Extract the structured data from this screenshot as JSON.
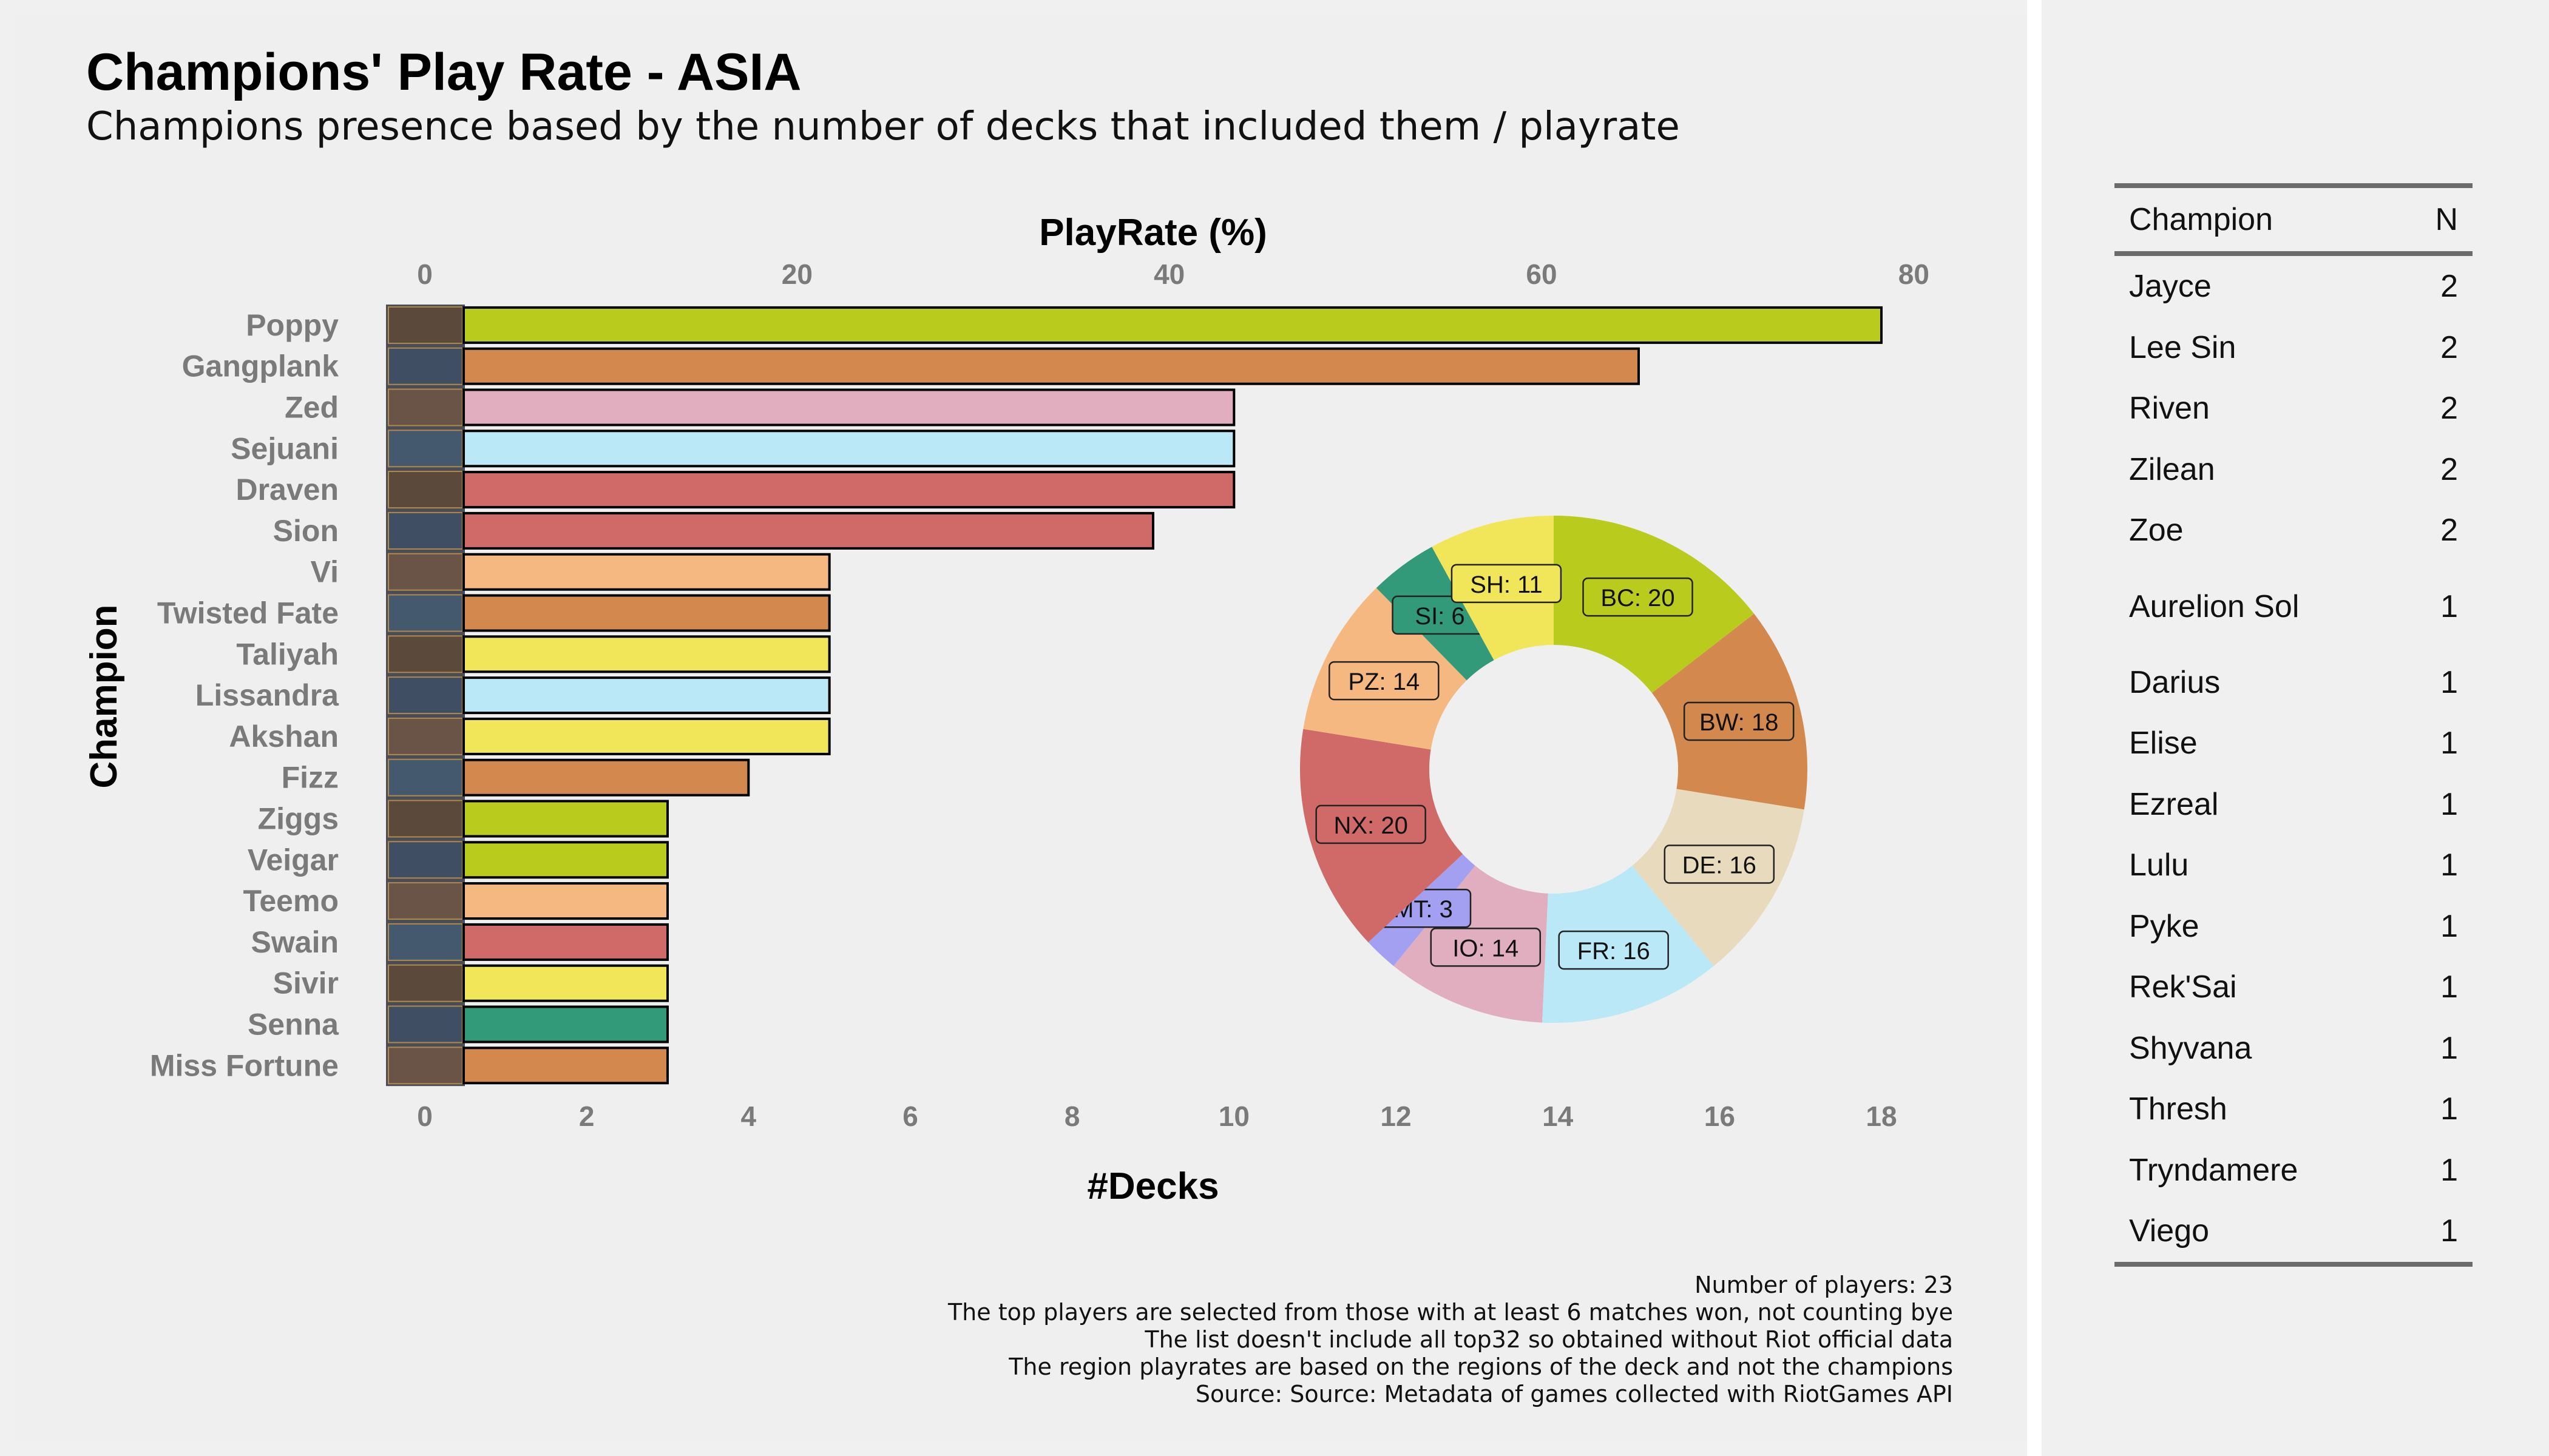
{
  "title": "Champions' Play Rate - ASIA",
  "subtitle": "Champions presence based by the number of decks that included them / playrate",
  "caption": [
    "Number of players: 23",
    "The top players are selected from those with at least 6 matches won, not counting bye",
    "The list doesn't include all top32 so obtained without Riot official data",
    "The region playrates are based on the regions of the deck and not the champions",
    "Source: Source: Metadata of games collected with RiotGames API"
  ],
  "chart_data": [
    {
      "type": "bar",
      "orientation": "horizontal",
      "title": "",
      "xlabel": "#Decks",
      "x2label": "PlayRate (%)",
      "ylabel": "Champion",
      "xlim": [
        0,
        18
      ],
      "x2lim": [
        0,
        80
      ],
      "xticks": [
        0,
        2,
        4,
        6,
        8,
        10,
        12,
        14,
        16,
        18
      ],
      "x2ticks": [
        0,
        20,
        40,
        60,
        80
      ],
      "categories": [
        "Poppy",
        "Gangplank",
        "Zed",
        "Sejuani",
        "Draven",
        "Sion",
        "Vi",
        "Twisted Fate",
        "Taliyah",
        "Lissandra",
        "Akshan",
        "Fizz",
        "Ziggs",
        "Veigar",
        "Teemo",
        "Swain",
        "Sivir",
        "Senna",
        "Miss Fortune"
      ],
      "values": [
        18,
        15,
        10,
        10,
        10,
        9,
        5,
        5,
        5,
        5,
        5,
        4,
        3,
        3,
        3,
        3,
        3,
        3,
        3
      ],
      "colors": [
        "#b9cc1e",
        "#d3894e",
        "#e0aebe",
        "#bae8f6",
        "#cf6a69",
        "#cf6a69",
        "#f5b880",
        "#d3894e",
        "#f1e65a",
        "#bae8f6",
        "#f1e65a",
        "#d3894e",
        "#b9cc1e",
        "#b9cc1e",
        "#f5b880",
        "#cf6a69",
        "#f1e65a",
        "#329a79",
        "#d3894e"
      ]
    },
    {
      "type": "pie",
      "donut": true,
      "slices": [
        {
          "label": "BC: 20",
          "value": 20,
          "color": "#b9cc1e"
        },
        {
          "label": "BW: 18",
          "value": 18,
          "color": "#d3894e"
        },
        {
          "label": "DE: 16",
          "value": 16,
          "color": "#e8dbbd"
        },
        {
          "label": "FR: 16",
          "value": 16,
          "color": "#bae8f6"
        },
        {
          "label": "IO: 14",
          "value": 14,
          "color": "#e0aebe"
        },
        {
          "label": "MT: 3",
          "value": 3,
          "color": "#a3a0f2"
        },
        {
          "label": "NX: 20",
          "value": 20,
          "color": "#cf6a69"
        },
        {
          "label": "PZ: 14",
          "value": 14,
          "color": "#f5b880"
        },
        {
          "label": "SI: 6",
          "value": 6,
          "color": "#329a79"
        },
        {
          "label": "SH: 11",
          "value": 11,
          "color": "#f1e65a"
        }
      ]
    }
  ],
  "table": {
    "headers": [
      "Champion",
      "N"
    ],
    "rows": [
      {
        "name": "Jayce",
        "n": "2"
      },
      {
        "name": "Lee Sin",
        "n": "2"
      },
      {
        "name": "Riven",
        "n": "2"
      },
      {
        "name": "Zilean",
        "n": "2"
      },
      {
        "name": "Zoe",
        "n": "2"
      },
      {
        "name": "Aurelion Sol",
        "n": "1"
      },
      {
        "name": "Darius",
        "n": "1"
      },
      {
        "name": "Elise",
        "n": "1"
      },
      {
        "name": "Ezreal",
        "n": "1"
      },
      {
        "name": "Lulu",
        "n": "1"
      },
      {
        "name": "Pyke",
        "n": "1"
      },
      {
        "name": "Rek'Sai",
        "n": "1"
      },
      {
        "name": "Shyvana",
        "n": "1"
      },
      {
        "name": "Thresh",
        "n": "1"
      },
      {
        "name": "Tryndamere",
        "n": "1"
      },
      {
        "name": "Viego",
        "n": "1"
      }
    ]
  }
}
